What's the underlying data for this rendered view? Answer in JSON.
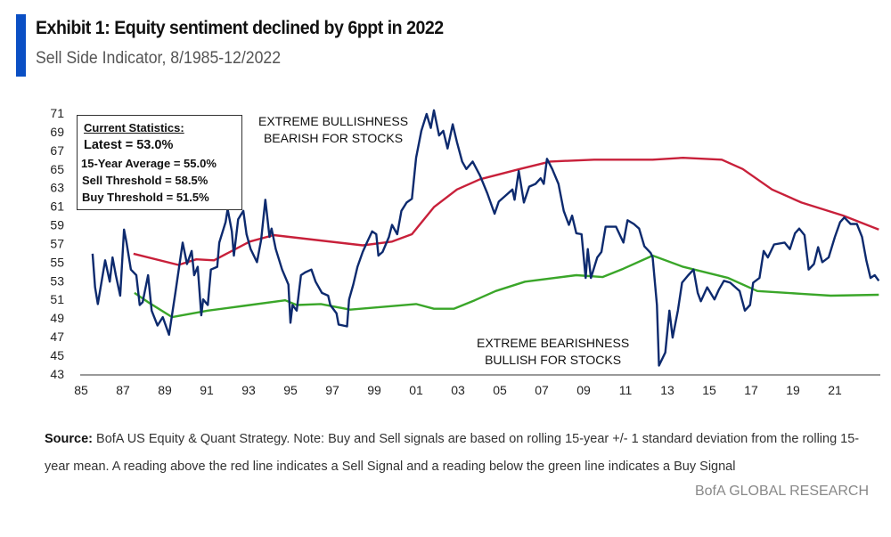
{
  "header": {
    "title": "Exhibit 1: Equity sentiment declined by 6ppt in 2022",
    "subtitle": "Sell Side Indicator, 8/1985-12/2022",
    "accent_color": "#0a4fc4"
  },
  "stats_box": {
    "heading": "Current Statistics:",
    "latest": "Latest = 53.0%",
    "average": "15-Year Average = 55.0%",
    "sell": "Sell Threshold = 58.5%",
    "buy": "Buy Threshold = 51.5%"
  },
  "annotations": {
    "bull_1": "EXTREME BULLISHNESS",
    "bull_2": "BEARISH FOR STOCKS",
    "bear_1": "EXTREME BEARISHNESS",
    "bear_2": "BULLISH FOR STOCKS"
  },
  "footer": {
    "source_label": "Source:",
    "source_text": " BofA US Equity & Quant Strategy. Note: Buy and Sell signals are based on rolling 15-year +/- 1 standard deviation from the rolling 15-year mean. A reading above the red line indicates a Sell Signal and a reading below the green line indicates a Buy Signal",
    "brand": "BofA GLOBAL RESEARCH"
  },
  "chart_data": {
    "type": "line",
    "title": "",
    "xlabel": "",
    "ylabel": "",
    "xlim": [
      1984.5,
      2023.5
    ],
    "ylim": [
      43,
      71
    ],
    "grid": false,
    "y_ticks": [
      43,
      45,
      47,
      49,
      51,
      53,
      55,
      57,
      59,
      61,
      63,
      65,
      67,
      69,
      71
    ],
    "x_ticks": [
      1985,
      1987,
      1989,
      1991,
      1993,
      1995,
      1997,
      1999,
      2001,
      2003,
      2005,
      2007,
      2009,
      2011,
      2013,
      2015,
      2017,
      2019,
      2021
    ],
    "x_tick_labels": [
      "85",
      "87",
      "89",
      "91",
      "93",
      "95",
      "97",
      "99",
      "01",
      "03",
      "05",
      "07",
      "09",
      "11",
      "13",
      "15",
      "17",
      "19",
      "21"
    ],
    "series": [
      {
        "key": "ssi",
        "color": "#0d2a6e",
        "points": [
          [
            1985.55,
            55.9
          ],
          [
            1985.67,
            52.3
          ],
          [
            1985.8,
            50.5
          ],
          [
            1986.15,
            55.2
          ],
          [
            1986.37,
            52.9
          ],
          [
            1986.5,
            55.5
          ],
          [
            1986.66,
            53.6
          ],
          [
            1986.87,
            51.4
          ],
          [
            1987.05,
            58.5
          ],
          [
            1987.17,
            57.1
          ],
          [
            1987.38,
            54.2
          ],
          [
            1987.64,
            53.6
          ],
          [
            1987.8,
            50.4
          ],
          [
            1987.94,
            50.7
          ],
          [
            1988.2,
            53.6
          ],
          [
            1988.37,
            49.8
          ],
          [
            1988.65,
            48.2
          ],
          [
            1988.9,
            49.1
          ],
          [
            1989.2,
            47.2
          ],
          [
            1989.5,
            51.7
          ],
          [
            1989.85,
            57.1
          ],
          [
            1990.06,
            54.8
          ],
          [
            1990.28,
            56.2
          ],
          [
            1990.4,
            53.6
          ],
          [
            1990.57,
            54.5
          ],
          [
            1990.74,
            49.3
          ],
          [
            1990.83,
            51.0
          ],
          [
            1991.05,
            50.4
          ],
          [
            1991.2,
            54.2
          ],
          [
            1991.5,
            54.5
          ],
          [
            1991.6,
            57.1
          ],
          [
            1991.9,
            59.3
          ],
          [
            1992.0,
            60.7
          ],
          [
            1992.2,
            58.3
          ],
          [
            1992.3,
            55.7
          ],
          [
            1992.5,
            59.6
          ],
          [
            1992.75,
            60.5
          ],
          [
            1992.9,
            58.0
          ],
          [
            1993.1,
            56.4
          ],
          [
            1993.4,
            55.0
          ],
          [
            1993.6,
            57.4
          ],
          [
            1993.8,
            61.7
          ],
          [
            1994.0,
            57.7
          ],
          [
            1994.1,
            58.6
          ],
          [
            1994.3,
            56.4
          ],
          [
            1994.6,
            54.2
          ],
          [
            1994.9,
            52.6
          ],
          [
            1995.0,
            48.5
          ],
          [
            1995.1,
            50.4
          ],
          [
            1995.3,
            49.8
          ],
          [
            1995.5,
            53.6
          ],
          [
            1995.7,
            53.9
          ],
          [
            1996.0,
            54.2
          ],
          [
            1996.2,
            52.9
          ],
          [
            1996.5,
            51.7
          ],
          [
            1996.8,
            51.4
          ],
          [
            1996.9,
            50.4
          ],
          [
            1997.2,
            49.5
          ],
          [
            1997.3,
            48.3
          ],
          [
            1997.7,
            48.1
          ],
          [
            1997.8,
            51.0
          ],
          [
            1998.0,
            52.6
          ],
          [
            1998.2,
            54.5
          ],
          [
            1998.45,
            56.1
          ],
          [
            1998.65,
            57.1
          ],
          [
            1998.9,
            58.3
          ],
          [
            1999.1,
            58.0
          ],
          [
            1999.2,
            55.7
          ],
          [
            1999.4,
            56.1
          ],
          [
            1999.7,
            57.7
          ],
          [
            1999.85,
            59.0
          ],
          [
            2000.1,
            58.0
          ],
          [
            2000.3,
            60.5
          ],
          [
            2000.55,
            61.4
          ],
          [
            2000.8,
            61.8
          ],
          [
            2001.0,
            66.2
          ],
          [
            2001.25,
            69.1
          ],
          [
            2001.5,
            70.9
          ],
          [
            2001.7,
            69.4
          ],
          [
            2001.85,
            71.3
          ],
          [
            2002.1,
            68.6
          ],
          [
            2002.3,
            69.1
          ],
          [
            2002.5,
            67.2
          ],
          [
            2002.75,
            69.8
          ],
          [
            2002.95,
            67.9
          ],
          [
            2003.2,
            65.8
          ],
          [
            2003.4,
            65.0
          ],
          [
            2003.7,
            65.8
          ],
          [
            2004.05,
            64.3
          ],
          [
            2004.4,
            62.4
          ],
          [
            2004.75,
            60.2
          ],
          [
            2004.95,
            61.5
          ],
          [
            2005.25,
            62.1
          ],
          [
            2005.6,
            62.8
          ],
          [
            2005.7,
            61.7
          ],
          [
            2005.9,
            64.8
          ],
          [
            2006.15,
            61.4
          ],
          [
            2006.4,
            63.1
          ],
          [
            2006.7,
            63.4
          ],
          [
            2006.95,
            64.0
          ],
          [
            2007.1,
            63.4
          ],
          [
            2007.25,
            66.1
          ],
          [
            2007.5,
            65.0
          ],
          [
            2007.8,
            63.4
          ],
          [
            2008.05,
            60.5
          ],
          [
            2008.3,
            59.0
          ],
          [
            2008.45,
            60.0
          ],
          [
            2008.65,
            58.1
          ],
          [
            2008.9,
            58.0
          ],
          [
            2009.1,
            53.3
          ],
          [
            2009.2,
            56.4
          ],
          [
            2009.35,
            53.3
          ],
          [
            2009.65,
            55.5
          ],
          [
            2009.85,
            56.1
          ],
          [
            2010.05,
            58.8
          ],
          [
            2010.55,
            58.8
          ],
          [
            2010.9,
            57.1
          ],
          [
            2011.1,
            59.5
          ],
          [
            2011.4,
            59.1
          ],
          [
            2011.65,
            58.6
          ],
          [
            2011.9,
            56.7
          ],
          [
            2012.2,
            56.0
          ],
          [
            2012.3,
            55.5
          ],
          [
            2012.5,
            50.4
          ],
          [
            2012.6,
            43.9
          ],
          [
            2012.9,
            45.3
          ],
          [
            2013.1,
            49.8
          ],
          [
            2013.25,
            46.9
          ],
          [
            2013.5,
            49.8
          ],
          [
            2013.7,
            52.8
          ],
          [
            2014.0,
            53.6
          ],
          [
            2014.25,
            54.2
          ],
          [
            2014.45,
            51.7
          ],
          [
            2014.6,
            50.8
          ],
          [
            2014.9,
            52.3
          ],
          [
            2015.25,
            51.0
          ],
          [
            2015.45,
            52.0
          ],
          [
            2015.7,
            53.0
          ],
          [
            2016.0,
            52.8
          ],
          [
            2016.25,
            52.3
          ],
          [
            2016.45,
            51.9
          ],
          [
            2016.7,
            49.8
          ],
          [
            2016.95,
            50.4
          ],
          [
            2017.1,
            52.8
          ],
          [
            2017.4,
            53.3
          ],
          [
            2017.6,
            56.2
          ],
          [
            2017.8,
            55.5
          ],
          [
            2018.1,
            56.9
          ],
          [
            2018.6,
            57.1
          ],
          [
            2018.85,
            56.4
          ],
          [
            2019.1,
            58.1
          ],
          [
            2019.3,
            58.6
          ],
          [
            2019.55,
            57.9
          ],
          [
            2019.75,
            54.2
          ],
          [
            2020.0,
            54.8
          ],
          [
            2020.2,
            56.6
          ],
          [
            2020.4,
            55.0
          ],
          [
            2020.7,
            55.5
          ],
          [
            2021.0,
            57.7
          ],
          [
            2021.25,
            59.3
          ],
          [
            2021.45,
            59.8
          ],
          [
            2021.75,
            59.1
          ],
          [
            2022.05,
            59.1
          ],
          [
            2022.3,
            57.7
          ],
          [
            2022.5,
            55.2
          ],
          [
            2022.7,
            53.3
          ],
          [
            2022.9,
            53.6
          ],
          [
            2023.1,
            53.0
          ]
        ]
      },
      {
        "key": "sell_threshold",
        "color": "#c8203a",
        "points": [
          [
            1987.5,
            55.9
          ],
          [
            1989.65,
            54.7
          ],
          [
            1990.5,
            55.3
          ],
          [
            1991.35,
            55.2
          ],
          [
            1993.05,
            57.2
          ],
          [
            1994.2,
            57.9
          ],
          [
            1998.45,
            56.8
          ],
          [
            1999.85,
            57.2
          ],
          [
            2000.8,
            58.0
          ],
          [
            2001.85,
            60.9
          ],
          [
            2002.95,
            62.8
          ],
          [
            2004.05,
            63.9
          ],
          [
            2005.95,
            65.0
          ],
          [
            2007.4,
            65.8
          ],
          [
            2009.5,
            66.0
          ],
          [
            2012.3,
            66.0
          ],
          [
            2013.75,
            66.2
          ],
          [
            2015.6,
            66.0
          ],
          [
            2016.6,
            65.0
          ],
          [
            2018.0,
            62.8
          ],
          [
            2019.4,
            61.4
          ],
          [
            2021.4,
            60.0
          ],
          [
            2023.1,
            58.5
          ]
        ]
      },
      {
        "key": "buy_threshold",
        "color": "#3aa629",
        "points": [
          [
            1987.55,
            51.7
          ],
          [
            1988.2,
            50.7
          ],
          [
            1989.35,
            49.1
          ],
          [
            1991.05,
            49.8
          ],
          [
            1992.75,
            50.3
          ],
          [
            1994.75,
            50.9
          ],
          [
            1995.3,
            50.4
          ],
          [
            1996.45,
            50.5
          ],
          [
            1997.85,
            49.9
          ],
          [
            2001.0,
            50.5
          ],
          [
            2001.85,
            50.0
          ],
          [
            2002.8,
            50.0
          ],
          [
            2003.8,
            50.9
          ],
          [
            2004.8,
            51.9
          ],
          [
            2006.2,
            52.9
          ],
          [
            2008.65,
            53.6
          ],
          [
            2009.9,
            53.4
          ],
          [
            2010.9,
            54.3
          ],
          [
            2012.3,
            55.7
          ],
          [
            2013.75,
            54.5
          ],
          [
            2015.9,
            53.3
          ],
          [
            2017.3,
            51.9
          ],
          [
            2019.4,
            51.6
          ],
          [
            2020.8,
            51.4
          ],
          [
            2023.1,
            51.5
          ]
        ]
      }
    ]
  }
}
